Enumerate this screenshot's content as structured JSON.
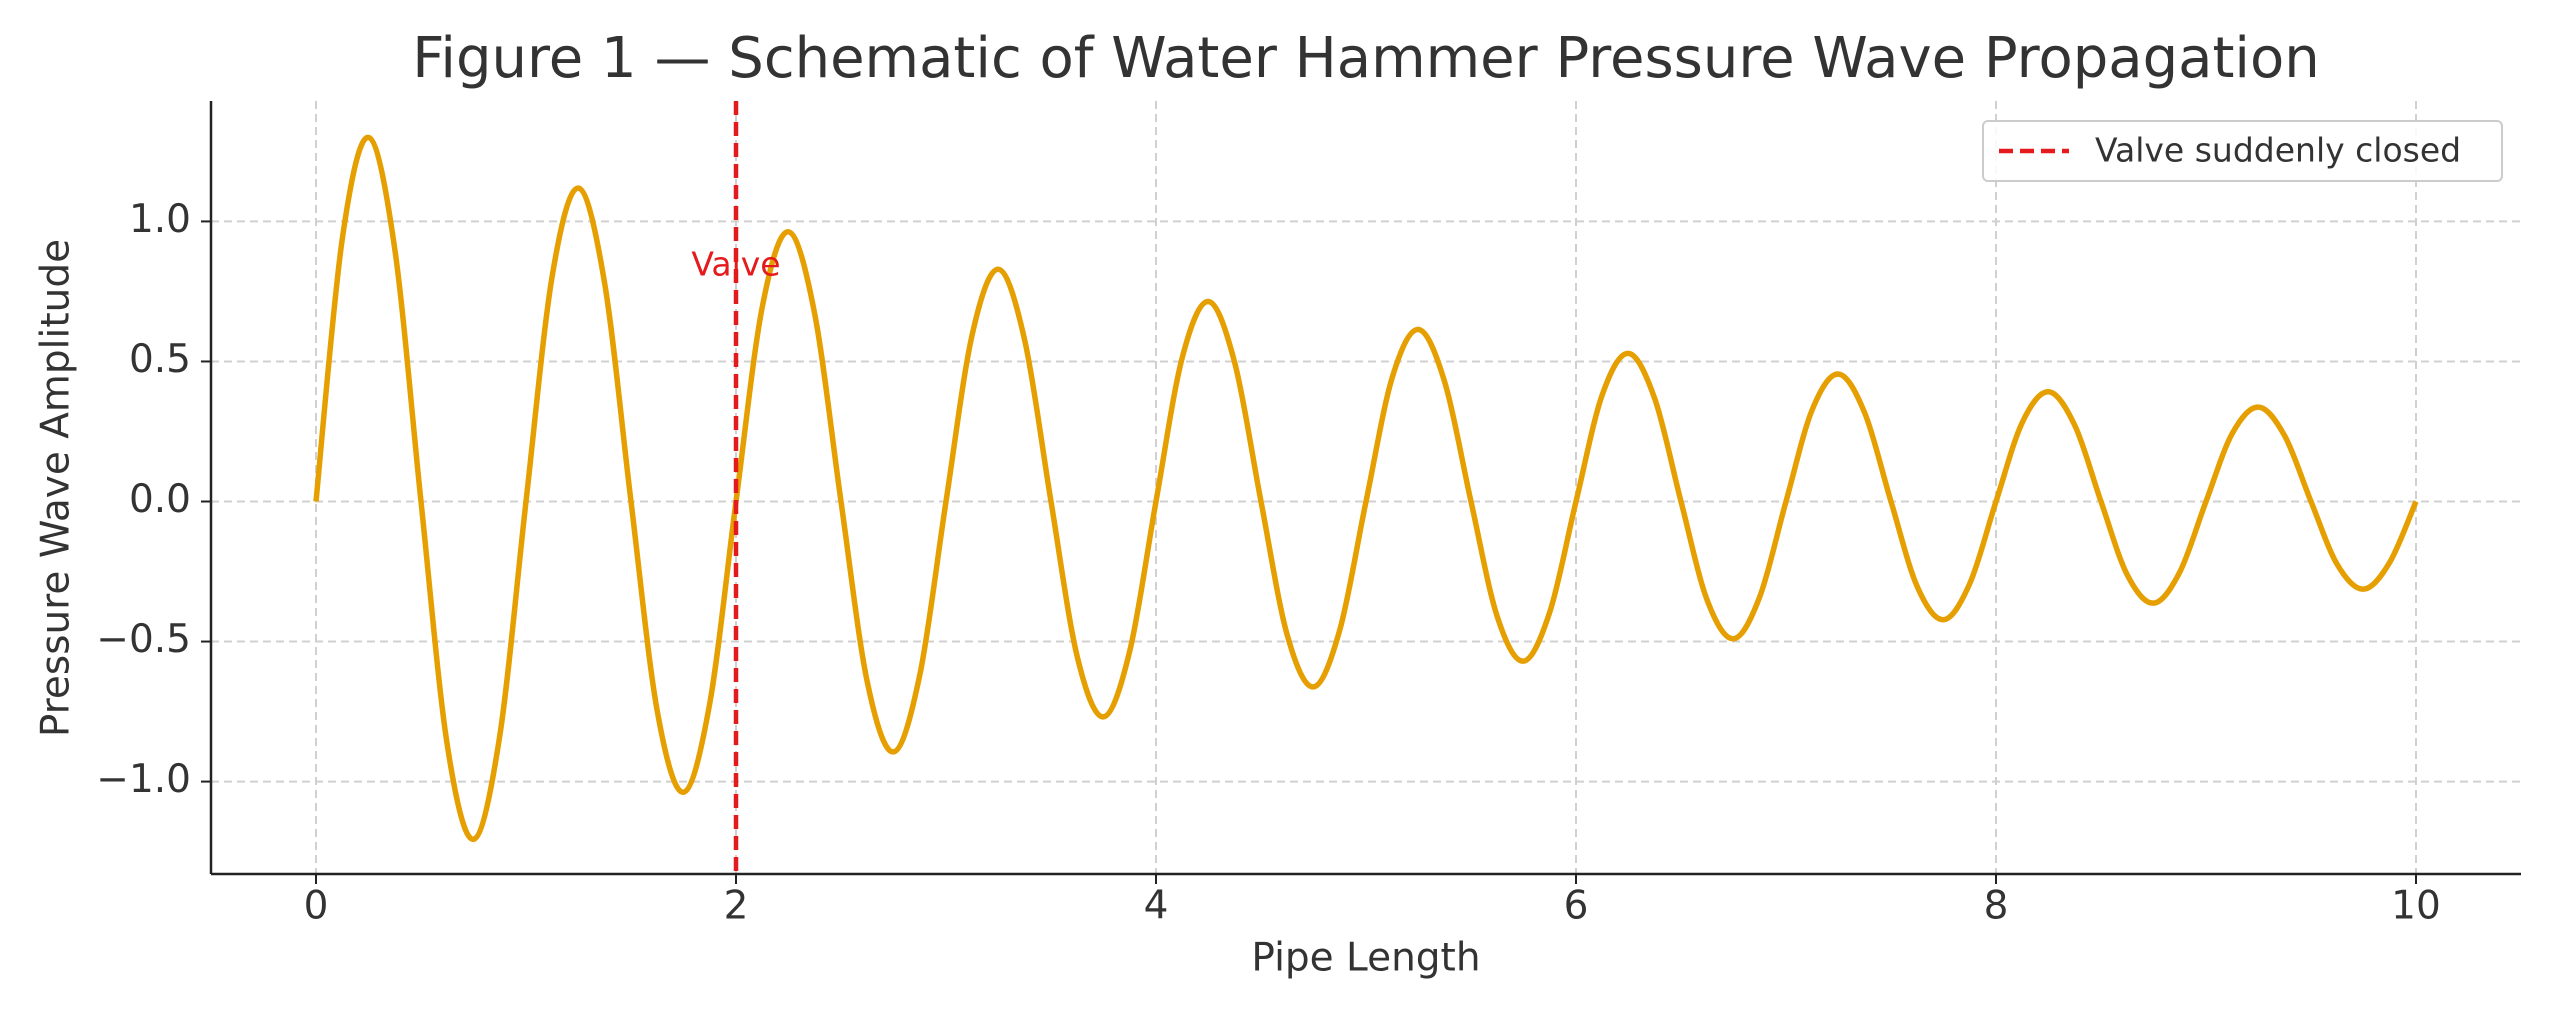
{
  "chart_data": {
    "type": "line",
    "title": "Figure 1 — Schematic of Water Hammer Pressure Wave Propagation",
    "x_label": "Pipe Length",
    "y_label": "Pressure Wave Amplitude",
    "x": [
      0,
      0.125,
      0.25,
      0.375,
      0.5,
      0.625,
      0.75,
      0.875,
      1,
      1.125,
      1.25,
      1.375,
      1.5,
      1.625,
      1.75,
      1.875,
      2,
      2.125,
      2.25,
      2.375,
      2.5,
      2.625,
      2.75,
      2.875,
      3,
      3.125,
      3.25,
      3.375,
      3.5,
      3.625,
      3.75,
      3.875,
      4,
      4.125,
      4.25,
      4.375,
      4.5,
      4.625,
      4.75,
      4.875,
      5,
      5.125,
      5.25,
      5.375,
      5.5,
      5.625,
      5.75,
      5.875,
      6,
      6.125,
      6.25,
      6.375,
      6.5,
      6.625,
      6.75,
      6.875,
      7,
      7.125,
      7.25,
      7.375,
      7.5,
      7.625,
      7.75,
      7.875,
      8,
      8.125,
      8.25,
      8.375,
      8.5,
      8.625,
      8.75,
      8.875,
      9,
      9.125,
      9.25,
      9.375,
      9.5,
      9.625,
      9.75,
      9.875,
      10
    ],
    "values": [
      0,
      0.937,
      1.3,
      0.902,
      0,
      -0.869,
      -1.206,
      -0.837,
      0,
      0.806,
      1.119,
      0.777,
      0,
      -0.748,
      -1.038,
      -0.721,
      0,
      0.694,
      0.963,
      0.669,
      0,
      -0.644,
      -0.894,
      -0.62,
      0,
      0.597,
      0.829,
      0.575,
      0,
      -0.554,
      -0.769,
      -0.534,
      0,
      0.514,
      0.714,
      0.495,
      0,
      -0.477,
      -0.662,
      -0.459,
      0,
      0.443,
      0.614,
      0.426,
      0,
      -0.411,
      -0.57,
      -0.395,
      0,
      0.381,
      0.529,
      0.367,
      0,
      -0.353,
      -0.49,
      -0.34,
      0,
      0.328,
      0.455,
      0.316,
      0,
      -0.304,
      -0.422,
      -0.293,
      0,
      0.282,
      0.392,
      0.272,
      0,
      -0.262,
      -0.363,
      -0.252,
      0,
      0.243,
      0.337,
      0.234,
      0,
      -0.225,
      -0.313,
      -0.217,
      0
    ],
    "color": "#e69f00",
    "vline": {
      "x": 2,
      "color": "#e41a1c",
      "label": "Valve suddenly closed",
      "text": "Valve"
    },
    "legend_loc": "upper right",
    "grid": true,
    "xlim": [
      -0.5,
      10.5
    ],
    "ylim": [
      -1.33,
      1.43
    ],
    "xticks": [
      0,
      2,
      4,
      6,
      8,
      10
    ],
    "yticks": [
      {
        "value": -1,
        "label": "−1.0"
      },
      {
        "value": -0.5,
        "label": "−0.5"
      },
      {
        "value": 0,
        "label": "0.0"
      },
      {
        "value": 0.5,
        "label": "0.5"
      },
      {
        "value": 1,
        "label": "1.0"
      }
    ]
  }
}
